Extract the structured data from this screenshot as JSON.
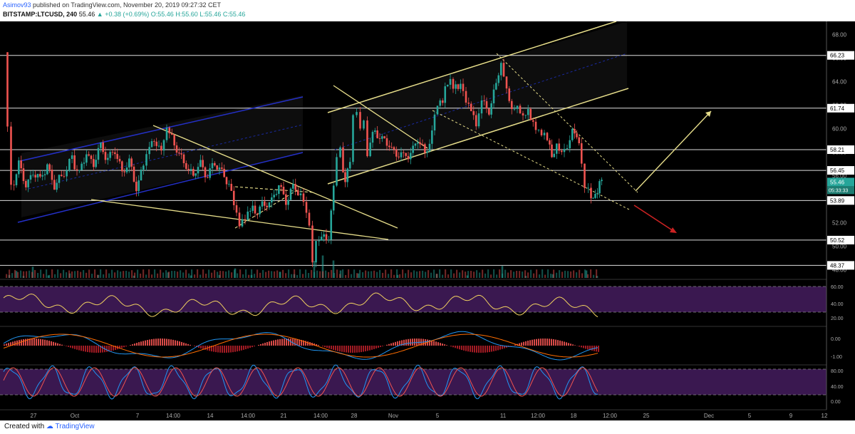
{
  "header": {
    "author": "Asimov93",
    "published": "published on TradingView.com, November 20, 2019 09:27:32 CET",
    "symbol": "BITSTAMP:LTCUSD, 240",
    "last": "55.46",
    "change": "+0.38 (+0.69%)",
    "ohlc": "O:55.46 H:55.60 L:55.46 C:55.46"
  },
  "footer": {
    "created_with": "Created with",
    "brand": "TradingView"
  },
  "colors": {
    "up": "#26a69a",
    "down": "#ef5350",
    "yellow": "#e6dd8a",
    "blue": "#2430c8",
    "purple": "#3a1850",
    "red": "#cc2222"
  },
  "chart_data": {
    "type": "candlestick",
    "price_axis": {
      "min": 47,
      "max": 69,
      "ticks": [
        48,
        50,
        52,
        54,
        56,
        58,
        60,
        62,
        64,
        66,
        68
      ]
    },
    "last_price": "55.46",
    "countdown": "05:33:33",
    "levels": [
      {
        "value": 66.23,
        "label": "66.23"
      },
      {
        "value": 61.74,
        "label": "61.74"
      },
      {
        "value": 58.21,
        "label": "58.21"
      },
      {
        "value": 56.45,
        "label": "56.45"
      },
      {
        "value": 53.89,
        "label": "53.89"
      },
      {
        "value": 50.52,
        "label": "50.52"
      },
      {
        "value": 48.37,
        "label": "48.37"
      }
    ],
    "x_labels": [
      "27",
      "Oct",
      "7",
      "14:00",
      "14",
      "14:00",
      "21",
      "14:00",
      "28",
      "Nov",
      "5",
      "11",
      "12:00",
      "18",
      "12:00",
      "25",
      "Dec",
      "5",
      "9",
      "12"
    ],
    "price_path": [
      [
        0,
        66.5
      ],
      [
        5,
        60
      ],
      [
        10,
        55
      ],
      [
        20,
        57
      ],
      [
        30,
        55
      ],
      [
        40,
        56.5
      ],
      [
        50,
        55.5
      ],
      [
        60,
        57
      ],
      [
        70,
        55
      ],
      [
        80,
        56
      ],
      [
        95,
        57.5
      ],
      [
        105,
        56
      ],
      [
        115,
        58
      ],
      [
        125,
        57
      ],
      [
        135,
        58.5
      ],
      [
        145,
        57.5
      ],
      [
        155,
        58
      ],
      [
        165,
        56.5
      ],
      [
        175,
        57
      ],
      [
        185,
        55
      ],
      [
        195,
        57
      ],
      [
        200,
        58
      ],
      [
        210,
        59
      ],
      [
        220,
        58
      ],
      [
        228,
        60.5
      ],
      [
        235,
        59.5
      ],
      [
        245,
        57.5
      ],
      [
        255,
        57
      ],
      [
        265,
        56
      ],
      [
        275,
        57
      ],
      [
        285,
        56
      ],
      [
        295,
        57
      ],
      [
        305,
        56.5
      ],
      [
        315,
        55
      ],
      [
        322,
        53.5
      ],
      [
        330,
        51.5
      ],
      [
        338,
        52.5
      ],
      [
        345,
        53.5
      ],
      [
        355,
        53
      ],
      [
        365,
        53.5
      ],
      [
        375,
        54
      ],
      [
        385,
        55
      ],
      [
        395,
        54
      ],
      [
        405,
        55
      ],
      [
        412,
        54.5
      ],
      [
        420,
        54
      ],
      [
        428,
        52
      ],
      [
        433,
        49
      ],
      [
        438,
        50
      ],
      [
        445,
        51
      ],
      [
        455,
        50.5
      ],
      [
        462,
        55
      ],
      [
        467,
        57.5
      ],
      [
        472,
        58
      ],
      [
        478,
        55.5
      ],
      [
        485,
        57.5
      ],
      [
        490,
        61
      ],
      [
        495,
        61.5
      ],
      [
        500,
        60
      ],
      [
        505,
        60.5
      ],
      [
        510,
        58
      ],
      [
        520,
        60
      ],
      [
        530,
        59
      ],
      [
        540,
        58.5
      ],
      [
        550,
        58
      ],
      [
        560,
        57.5
      ],
      [
        570,
        58
      ],
      [
        580,
        59
      ],
      [
        590,
        58
      ],
      [
        600,
        59.5
      ],
      [
        608,
        62
      ],
      [
        615,
        62.5
      ],
      [
        622,
        64
      ],
      [
        630,
        63.5
      ],
      [
        640,
        64
      ],
      [
        648,
        62
      ],
      [
        655,
        61.5
      ],
      [
        662,
        60
      ],
      [
        670,
        62
      ],
      [
        680,
        61.5
      ],
      [
        690,
        64
      ],
      [
        697,
        65.5
      ],
      [
        705,
        63.5
      ],
      [
        712,
        61.5
      ],
      [
        720,
        62
      ],
      [
        728,
        61
      ],
      [
        735,
        61.5
      ],
      [
        742,
        60.5
      ],
      [
        750,
        60
      ],
      [
        758,
        59.5
      ],
      [
        762,
        59
      ],
      [
        768,
        57.5
      ],
      [
        775,
        58.5
      ],
      [
        782,
        58
      ],
      [
        790,
        58.5
      ],
      [
        797,
        60
      ],
      [
        803,
        59.5
      ],
      [
        810,
        57
      ],
      [
        815,
        54.5
      ],
      [
        820,
        55
      ],
      [
        826,
        54
      ],
      [
        832,
        55
      ],
      [
        838,
        55.5
      ]
    ],
    "volume": [
      [
        5,
        12
      ],
      [
        15,
        28
      ],
      [
        25,
        8
      ],
      [
        38,
        45
      ],
      [
        60,
        10
      ],
      [
        90,
        18
      ],
      [
        130,
        12
      ],
      [
        180,
        9
      ],
      [
        228,
        22
      ],
      [
        260,
        10
      ],
      [
        300,
        12
      ],
      [
        322,
        38
      ],
      [
        345,
        12
      ],
      [
        385,
        25
      ],
      [
        405,
        15
      ],
      [
        433,
        68
      ],
      [
        445,
        90
      ],
      [
        460,
        70
      ],
      [
        470,
        30
      ],
      [
        495,
        18
      ],
      [
        550,
        12
      ],
      [
        605,
        16
      ],
      [
        648,
        10
      ],
      [
        697,
        48
      ],
      [
        730,
        8
      ],
      [
        768,
        15
      ],
      [
        815,
        30
      ],
      [
        830,
        8
      ]
    ],
    "indicators": {
      "rsi": {
        "ticks": [
          "60.00",
          "40.00",
          "20.00"
        ],
        "bands": [
          70,
          30
        ]
      },
      "macd": {
        "ticks": [
          "0.00",
          "-1.00"
        ]
      },
      "stoch": {
        "ticks": [
          "80.00",
          "40.00",
          "0.00"
        ],
        "bands": [
          80,
          20
        ]
      }
    }
  }
}
